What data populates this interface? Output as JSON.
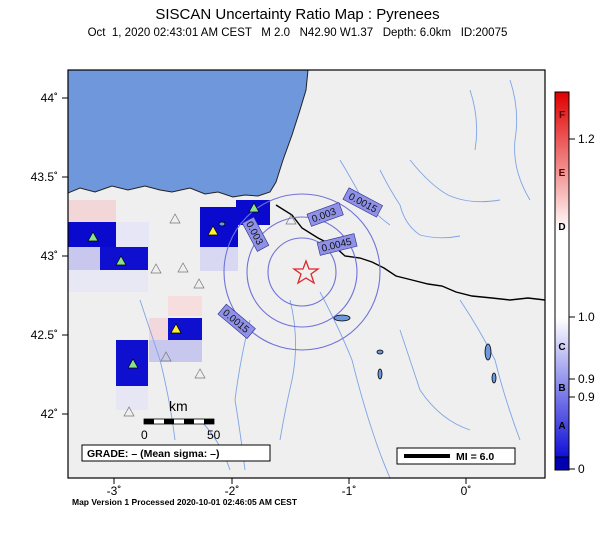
{
  "header": {
    "title": "SISCAN Uncertainty Ratio Map : Pyrenees",
    "subtitle": "Oct  1, 2020 02:43:01 AM CEST   M 2.0   N42.90 W1.37   Depth: 6.0km   ID:20075"
  },
  "map": {
    "lat_labels": [
      "44˚",
      "43.5˚",
      "43˚",
      "42.5˚",
      "42˚"
    ],
    "lon_labels": [
      "-3˚",
      "-2˚",
      "-1˚",
      "0˚"
    ],
    "contour_labels": [
      "0.0015",
      "0.003",
      "0.0045",
      "0.003",
      "0.0015"
    ],
    "scalebar": {
      "unit": "km",
      "zero": "0",
      "fifty": "50"
    },
    "grade_text": "GRADE: – (Mean sigma: –)",
    "mi_text": "MI = 6.0",
    "colors": {
      "sea": "#6f97db",
      "land": "#efefef",
      "epicenter": "#e0262a",
      "contour": "#7478d8",
      "station": "#8be08b"
    }
  },
  "colorbar": {
    "letters": [
      "F",
      "E",
      "D",
      "C",
      "B",
      "A"
    ],
    "values": [
      "1.2",
      "1.0",
      "0.9",
      "0.9",
      "0"
    ]
  },
  "footer": {
    "text": "Map Version 1 Processed 2020-10-01 02:46:05 AM CEST"
  }
}
